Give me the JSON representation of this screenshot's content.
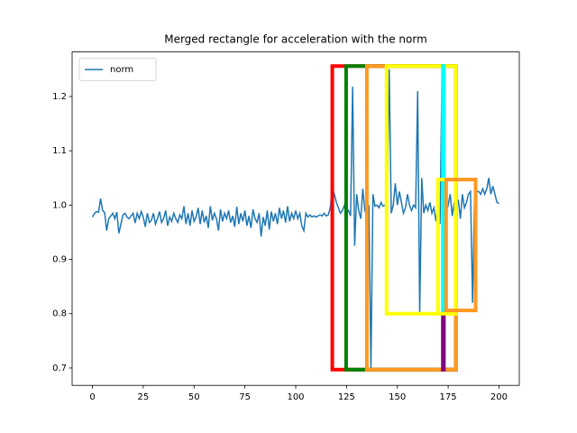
{
  "chart_data": {
    "type": "line",
    "title": "Merged rectangle for acceleration with the norm",
    "x": [
      0,
      1,
      2,
      3,
      4,
      5,
      6,
      7,
      8,
      9,
      10,
      11,
      12,
      13,
      14,
      15,
      16,
      17,
      18,
      19,
      20,
      21,
      22,
      23,
      24,
      25,
      26,
      27,
      28,
      29,
      30,
      31,
      32,
      33,
      34,
      35,
      36,
      37,
      38,
      39,
      40,
      41,
      42,
      43,
      44,
      45,
      46,
      47,
      48,
      49,
      50,
      51,
      52,
      53,
      54,
      55,
      56,
      57,
      58,
      59,
      60,
      61,
      62,
      63,
      64,
      65,
      66,
      67,
      68,
      69,
      70,
      71,
      72,
      73,
      74,
      75,
      76,
      77,
      78,
      79,
      80,
      81,
      82,
      83,
      84,
      85,
      86,
      87,
      88,
      89,
      90,
      91,
      92,
      93,
      94,
      95,
      96,
      97,
      98,
      99,
      100,
      101,
      102,
      103,
      104,
      105,
      106,
      107,
      108,
      109,
      110,
      111,
      112,
      113,
      114,
      115,
      116,
      117,
      118,
      119,
      120,
      121,
      122,
      123,
      124,
      125,
      126,
      127,
      128,
      129,
      130,
      131,
      132,
      133,
      134,
      135,
      136,
      137,
      138,
      139,
      140,
      141,
      142,
      143,
      144,
      145,
      146,
      147,
      148,
      149,
      150,
      151,
      152,
      153,
      154,
      155,
      156,
      157,
      158,
      159,
      160,
      161,
      162,
      163,
      164,
      165,
      166,
      167,
      168,
      169,
      170,
      171,
      172,
      173,
      174,
      175,
      176,
      177,
      178,
      179,
      180,
      181,
      182,
      183,
      184,
      185,
      186,
      187,
      188,
      189,
      190,
      191,
      192,
      193,
      194,
      195,
      196,
      197,
      198,
      199,
      200
    ],
    "series": [
      {
        "name": "norm",
        "color": "#1f77b4",
        "values": [
          0.978,
          0.985,
          0.988,
          0.987,
          1.012,
          0.99,
          0.986,
          0.953,
          0.975,
          0.98,
          0.985,
          0.975,
          0.987,
          0.948,
          0.965,
          0.982,
          0.985,
          0.978,
          0.975,
          0.98,
          0.985,
          0.967,
          0.985,
          0.975,
          0.988,
          0.978,
          0.96,
          0.985,
          0.968,
          0.972,
          0.985,
          0.965,
          0.975,
          0.988,
          0.968,
          0.975,
          0.99,
          0.962,
          0.978,
          0.97,
          0.985,
          0.975,
          0.968,
          0.982,
          0.975,
          0.998,
          0.965,
          0.985,
          0.962,
          0.99,
          0.97,
          0.978,
          0.995,
          0.965,
          0.99,
          0.968,
          0.98,
          0.958,
          0.998,
          0.972,
          0.985,
          0.975,
          0.953,
          0.992,
          0.97,
          0.985,
          0.975,
          0.99,
          0.968,
          0.98,
          0.96,
          0.997,
          0.965,
          0.985,
          0.97,
          0.99,
          0.962,
          0.98,
          0.958,
          0.992,
          0.975,
          0.968,
          0.985,
          0.942,
          0.978,
          0.962,
          0.99,
          0.955,
          0.988,
          0.97,
          0.985,
          0.965,
          0.995,
          0.975,
          0.99,
          0.968,
          0.998,
          0.97,
          0.985,
          0.975,
          0.99,
          0.975,
          0.985,
          0.962,
          0.953,
          0.985,
          0.978,
          0.982,
          0.978,
          0.98,
          0.978,
          0.98,
          0.982,
          0.98,
          0.985,
          0.98,
          0.982,
          0.995,
          1.032,
          1.02,
          1.005,
          0.995,
          0.985,
          0.99,
          1.0,
          0.985,
          0.99,
          0.98,
          1.218,
          0.925,
          1.02,
          0.99,
          0.975,
          1.03,
          0.99,
          0.98,
          1.0,
          0.695,
          1.02,
          0.998,
          1.0,
          0.995,
          1.005,
          0.998,
          1.0,
          1.01,
          1.25,
          0.985,
          1.0,
          1.04,
          1.0,
          1.025,
          1.005,
          0.985,
          0.995,
          1.02,
          1.0,
          0.99,
          1.0,
          0.995,
          1.21,
          0.8,
          1.05,
          0.985,
          1.0,
          0.99,
          1.005,
          0.985,
          0.995,
          0.97,
          1.005,
          0.965,
          1.25,
          0.99,
          0.985,
          1.0,
          1.02,
          0.98,
          1.005,
          0.99,
          1.01,
          0.975,
          1.02,
          0.995,
          1.005,
          1.02,
          1.025,
          0.82,
          1.02,
          1.025,
          1.025,
          1.02,
          1.03,
          1.02,
          1.03,
          1.05,
          1.02,
          1.035,
          1.02,
          1.005,
          1.003
        ]
      }
    ],
    "rectangles": [
      {
        "color": "red",
        "x": [
          118,
          178.8
        ],
        "y": [
          0.697,
          1.256
        ]
      },
      {
        "color": "green",
        "x": [
          124.8,
          178.8
        ],
        "y": [
          0.697,
          1.256
        ]
      },
      {
        "color": "#ff9922",
        "x": [
          135,
          178.8
        ],
        "y": [
          0.697,
          1.256
        ]
      },
      {
        "color": "yellow",
        "x": [
          144.7,
          178.8
        ],
        "y": [
          0.8,
          1.256
        ]
      },
      {
        "color": "cyan",
        "x": [
          172.4,
          172.9
        ],
        "y": [
          0.8,
          1.256
        ]
      },
      {
        "color": "purple",
        "x": [
          172.4,
          172.9
        ],
        "y": [
          0.697,
          0.8
        ]
      },
      {
        "color": "yellow",
        "x": [
          170,
          178.8
        ],
        "y": [
          0.8,
          1.047
        ]
      },
      {
        "color": "#ff9922",
        "x": [
          174,
          188.5
        ],
        "y": [
          0.806,
          1.047
        ]
      }
    ],
    "xlim": [
      -10,
      210
    ],
    "ylim": [
      0.668,
      1.282
    ],
    "xticks": [
      0,
      25,
      50,
      75,
      100,
      125,
      150,
      175,
      200
    ],
    "yticks": [
      0.7,
      0.8,
      0.9,
      {
        "value": 1,
        "label": "1.0"
      },
      1.1,
      1.2
    ],
    "legend": "upper left"
  }
}
